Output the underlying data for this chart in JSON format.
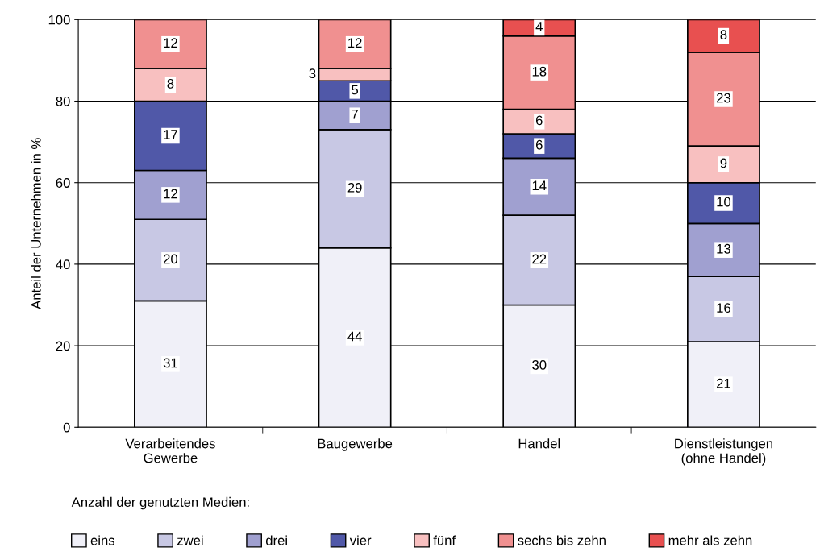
{
  "chart_data": {
    "type": "bar",
    "stacked": true,
    "ylabel": "Anteil der Unternehmen in %",
    "categories": [
      "Verarbeitendes\nGewerbe",
      "Baugewerbe",
      "Handel",
      "Dienstleistungen\n(ohne Handel)"
    ],
    "series": [
      {
        "name": "eins",
        "color": "#f0f0f8",
        "values": [
          31,
          44,
          30,
          21
        ]
      },
      {
        "name": "zwei",
        "color": "#c8c8e4",
        "values": [
          20,
          29,
          22,
          16
        ]
      },
      {
        "name": "drei",
        "color": "#a0a0d0",
        "values": [
          12,
          7,
          14,
          13
        ]
      },
      {
        "name": "vier",
        "color": "#5058a8",
        "values": [
          17,
          5,
          6,
          10
        ]
      },
      {
        "name": "fünf",
        "color": "#f8c0c0",
        "values": [
          8,
          3,
          6,
          9
        ]
      },
      {
        "name": "sechs bis zehn",
        "color": "#f09090",
        "values": [
          12,
          12,
          18,
          23
        ]
      },
      {
        "name": "mehr als zehn",
        "color": "#e85050",
        "values": [
          null,
          null,
          4,
          8
        ]
      }
    ],
    "ylim": [
      0,
      100
    ],
    "yticks": [
      0,
      20,
      40,
      60,
      80,
      100
    ],
    "grid": "y",
    "data_labels": true,
    "legend": "bottom",
    "legend_title": "Anzahl der genutzten Medien:"
  }
}
